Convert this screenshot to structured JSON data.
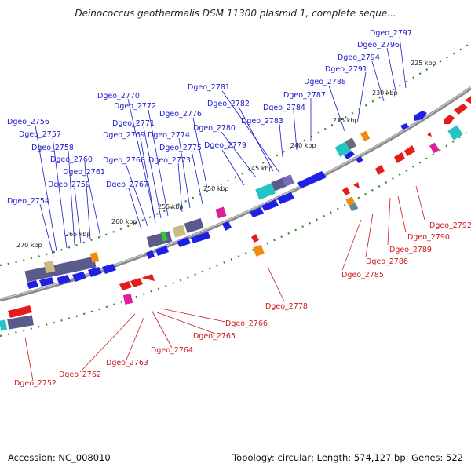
{
  "title": "Deinococcus geothermalis DSM 11300 plasmid 1, complete seque...",
  "footer": {
    "accession": "Accession: NC_008010",
    "summary": "Topology: circular; Length: 574,127 bp; Genes: 522"
  },
  "colors": {
    "forward_gene": "#1f1fe6",
    "reverse_gene": "#e61c1c",
    "forward_label": "#1a1acc",
    "reverse_label": "#cc1a1a",
    "backbone": "#8a8a8a",
    "tick_dots": "#2e8b2e",
    "cyan_feature": "#22c4c4",
    "magenta_feature": "#e0209a",
    "orange_feature": "#f08a10",
    "olive_feature": "#c8bc82",
    "slate_feature": "#5a5a8c"
  },
  "scale_labels": [
    "225 kbp",
    "230 kbp",
    "235 kbp",
    "240 kbp",
    "245 kbp",
    "250 kbp",
    "255 kbp",
    "260 kbp",
    "265 kbp",
    "270 kbp"
  ],
  "forward_gene_labels": [
    "Dgeo_2797",
    "Dgeo_2796",
    "Dgeo_2794",
    "Dgeo_2791",
    "Dgeo_2788",
    "Dgeo_2787",
    "Dgeo_2784",
    "Dgeo_2783",
    "Dgeo_2782",
    "Dgeo_2781",
    "Dgeo_2780",
    "Dgeo_2779",
    "Dgeo_2776",
    "Dgeo_2775",
    "Dgeo_2774",
    "Dgeo_2773",
    "Dgeo_2772",
    "Dgeo_2771",
    "Dgeo_2770",
    "Dgeo_2769",
    "Dgeo_2768",
    "Dgeo_2767",
    "Dgeo_2761",
    "Dgeo_2760",
    "Dgeo_2759",
    "Dgeo_2758",
    "Dgeo_2757",
    "Dgeo_2756",
    "Dgeo_2754"
  ],
  "reverse_gene_labels": [
    "Dgeo_2792",
    "Dgeo_2790",
    "Dgeo_2789",
    "Dgeo_2786",
    "Dgeo_2785",
    "Dgeo_2778",
    "Dgeo_2766",
    "Dgeo_2765",
    "Dgeo_2764",
    "Dgeo_2763",
    "Dgeo_2762",
    "Dgeo_2752"
  ]
}
